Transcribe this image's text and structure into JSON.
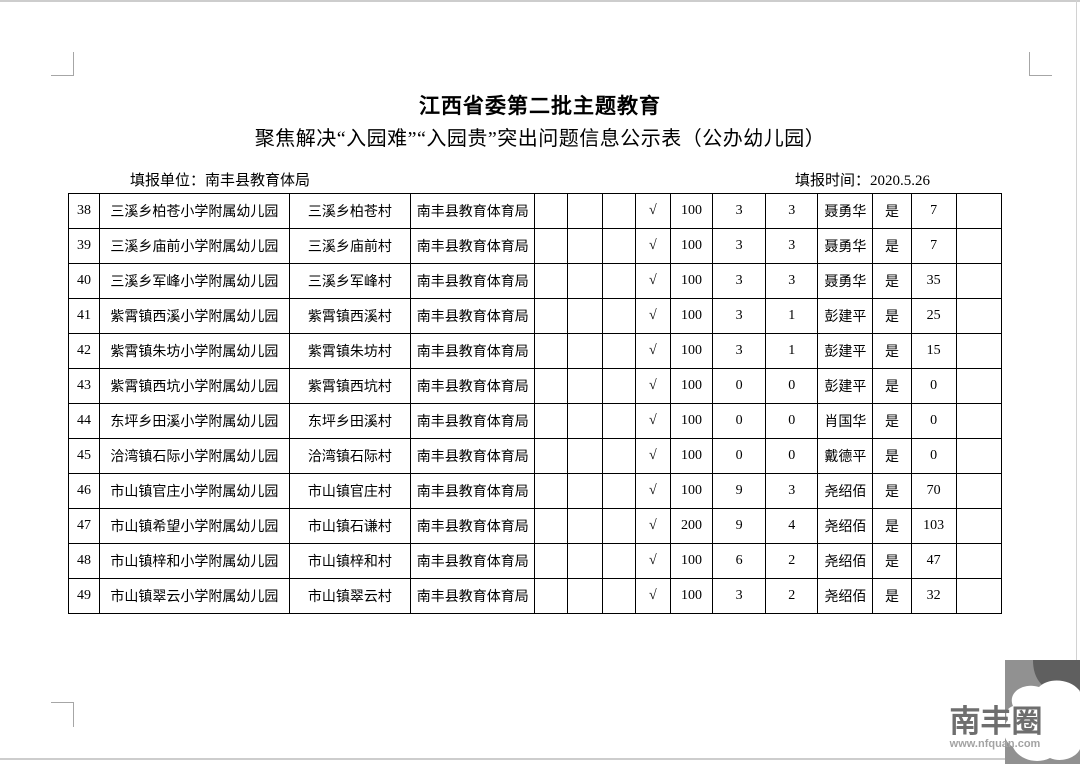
{
  "page": {
    "title": "江西省委第二批主题教育",
    "subtitle": "聚焦解决“入园难”“入园贵”突出问题信息公示表（公办幼儿园）",
    "report_unit": "填报单位：南丰县教育体局",
    "report_time": "填报时间：2020.5.26"
  },
  "table": {
    "rows": [
      {
        "no": "38",
        "name": "三溪乡柏苍小学附属幼儿园",
        "village": "三溪乡柏苍村",
        "authority": "南丰县教育体育局",
        "check": "√",
        "fee": "100",
        "classes": "3",
        "teachers": "3",
        "contact": "聂勇华",
        "is_public": "是",
        "children": "7"
      },
      {
        "no": "39",
        "name": "三溪乡庙前小学附属幼儿园",
        "village": "三溪乡庙前村",
        "authority": "南丰县教育体育局",
        "check": "√",
        "fee": "100",
        "classes": "3",
        "teachers": "3",
        "contact": "聂勇华",
        "is_public": "是",
        "children": "7"
      },
      {
        "no": "40",
        "name": "三溪乡军峰小学附属幼儿园",
        "village": "三溪乡军峰村",
        "authority": "南丰县教育体育局",
        "check": "√",
        "fee": "100",
        "classes": "3",
        "teachers": "3",
        "contact": "聂勇华",
        "is_public": "是",
        "children": "35"
      },
      {
        "no": "41",
        "name": "紫霄镇西溪小学附属幼儿园",
        "village": "紫霄镇西溪村",
        "authority": "南丰县教育体育局",
        "check": "√",
        "fee": "100",
        "classes": "3",
        "teachers": "1",
        "contact": "彭建平",
        "is_public": "是",
        "children": "25"
      },
      {
        "no": "42",
        "name": "紫霄镇朱坊小学附属幼儿园",
        "village": "紫霄镇朱坊村",
        "authority": "南丰县教育体育局",
        "check": "√",
        "fee": "100",
        "classes": "3",
        "teachers": "1",
        "contact": "彭建平",
        "is_public": "是",
        "children": "15"
      },
      {
        "no": "43",
        "name": "紫霄镇西坑小学附属幼儿园",
        "village": "紫霄镇西坑村",
        "authority": "南丰县教育体育局",
        "check": "√",
        "fee": "100",
        "classes": "0",
        "teachers": "0",
        "contact": "彭建平",
        "is_public": "是",
        "children": "0"
      },
      {
        "no": "44",
        "name": "东坪乡田溪小学附属幼儿园",
        "village": "东坪乡田溪村",
        "authority": "南丰县教育体育局",
        "check": "√",
        "fee": "100",
        "classes": "0",
        "teachers": "0",
        "contact": "肖国华",
        "is_public": "是",
        "children": "0"
      },
      {
        "no": "45",
        "name": "洽湾镇石际小学附属幼儿园",
        "village": "洽湾镇石际村",
        "authority": "南丰县教育体育局",
        "check": "√",
        "fee": "100",
        "classes": "0",
        "teachers": "0",
        "contact": "戴德平",
        "is_public": "是",
        "children": "0"
      },
      {
        "no": "46",
        "name": "市山镇官庄小学附属幼儿园",
        "village": "市山镇官庄村",
        "authority": "南丰县教育体育局",
        "check": "√",
        "fee": "100",
        "classes": "9",
        "teachers": "3",
        "contact": "尧绍佰",
        "is_public": "是",
        "children": "70"
      },
      {
        "no": "47",
        "name": "市山镇希望小学附属幼儿园",
        "village": "市山镇石谦村",
        "authority": "南丰县教育体育局",
        "check": "√",
        "fee": "200",
        "classes": "9",
        "teachers": "4",
        "contact": "尧绍佰",
        "is_public": "是",
        "children": "103"
      },
      {
        "no": "48",
        "name": "市山镇梓和小学附属幼儿园",
        "village": "市山镇梓和村",
        "authority": "南丰县教育体育局",
        "check": "√",
        "fee": "100",
        "classes": "6",
        "teachers": "2",
        "contact": "尧绍佰",
        "is_public": "是",
        "children": "47"
      },
      {
        "no": "49",
        "name": "市山镇翠云小学附属幼儿园",
        "village": "市山镇翠云村",
        "authority": "南丰县教育体育局",
        "check": "√",
        "fee": "100",
        "classes": "3",
        "teachers": "2",
        "contact": "尧绍佰",
        "is_public": "是",
        "children": "32"
      }
    ]
  },
  "watermark": {
    "logo_text": "南丰圈",
    "url": "www.nfquan.com",
    "box_color": "#919191",
    "blob_color": "#5f5f5f",
    "text_color": "#6e6e6e",
    "url_color": "#a3a3a3"
  }
}
